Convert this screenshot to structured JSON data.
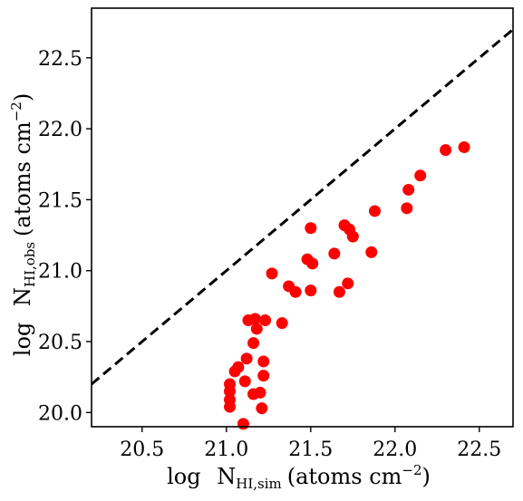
{
  "chart_data": {
    "type": "scatter",
    "xlim": [
      20.2,
      22.7
    ],
    "ylim": [
      19.9,
      22.85
    ],
    "x_ticks": [
      "20.5",
      "21.0",
      "21.5",
      "22.0",
      "22.5"
    ],
    "y_ticks": [
      "20.0",
      "20.5",
      "21.0",
      "21.5",
      "22.0",
      "22.5"
    ],
    "x_tick_values": [
      20.5,
      21.0,
      21.5,
      22.0,
      22.5
    ],
    "y_tick_values": [
      20.0,
      20.5,
      21.0,
      21.5,
      22.0,
      22.5
    ],
    "xlabel": {
      "prefix": "log",
      "symbol": "N",
      "subscript": "HI,sim",
      "units_open": "(atoms cm",
      "exponent": "−2",
      "units_close": ")"
    },
    "ylabel": {
      "prefix": "log",
      "symbol": "N",
      "subscript": "HI,obs",
      "units_open": "(atoms cm",
      "exponent": "−2",
      "units_close": ")"
    },
    "reference_line": {
      "style": "dashed",
      "color": "#000000",
      "x": [
        20.2,
        22.7
      ],
      "y": [
        20.2,
        22.7
      ]
    },
    "point_color": "#ff0000",
    "points": [
      {
        "x": 21.02,
        "y": 20.2
      },
      {
        "x": 21.02,
        "y": 20.15
      },
      {
        "x": 21.02,
        "y": 20.09
      },
      {
        "x": 21.02,
        "y": 20.04
      },
      {
        "x": 21.05,
        "y": 20.29
      },
      {
        "x": 21.07,
        "y": 20.32
      },
      {
        "x": 21.1,
        "y": 19.92
      },
      {
        "x": 21.11,
        "y": 20.22
      },
      {
        "x": 21.12,
        "y": 20.38
      },
      {
        "x": 21.13,
        "y": 20.65
      },
      {
        "x": 21.16,
        "y": 20.49
      },
      {
        "x": 21.16,
        "y": 20.13
      },
      {
        "x": 21.17,
        "y": 20.66
      },
      {
        "x": 21.18,
        "y": 20.59
      },
      {
        "x": 21.2,
        "y": 20.14
      },
      {
        "x": 21.21,
        "y": 20.03
      },
      {
        "x": 21.22,
        "y": 20.26
      },
      {
        "x": 21.22,
        "y": 20.36
      },
      {
        "x": 21.23,
        "y": 20.65
      },
      {
        "x": 21.27,
        "y": 20.98
      },
      {
        "x": 21.33,
        "y": 20.63
      },
      {
        "x": 21.37,
        "y": 20.89
      },
      {
        "x": 21.41,
        "y": 20.85
      },
      {
        "x": 21.48,
        "y": 21.08
      },
      {
        "x": 21.5,
        "y": 21.3
      },
      {
        "x": 21.5,
        "y": 20.86
      },
      {
        "x": 21.51,
        "y": 21.05
      },
      {
        "x": 21.64,
        "y": 21.12
      },
      {
        "x": 21.67,
        "y": 20.85
      },
      {
        "x": 21.7,
        "y": 21.32
      },
      {
        "x": 21.72,
        "y": 20.91
      },
      {
        "x": 21.73,
        "y": 21.29
      },
      {
        "x": 21.75,
        "y": 21.24
      },
      {
        "x": 21.86,
        "y": 21.13
      },
      {
        "x": 21.88,
        "y": 21.42
      },
      {
        "x": 22.07,
        "y": 21.44
      },
      {
        "x": 22.08,
        "y": 21.57
      },
      {
        "x": 22.15,
        "y": 21.67
      },
      {
        "x": 22.3,
        "y": 21.85
      },
      {
        "x": 22.41,
        "y": 21.87
      }
    ]
  }
}
